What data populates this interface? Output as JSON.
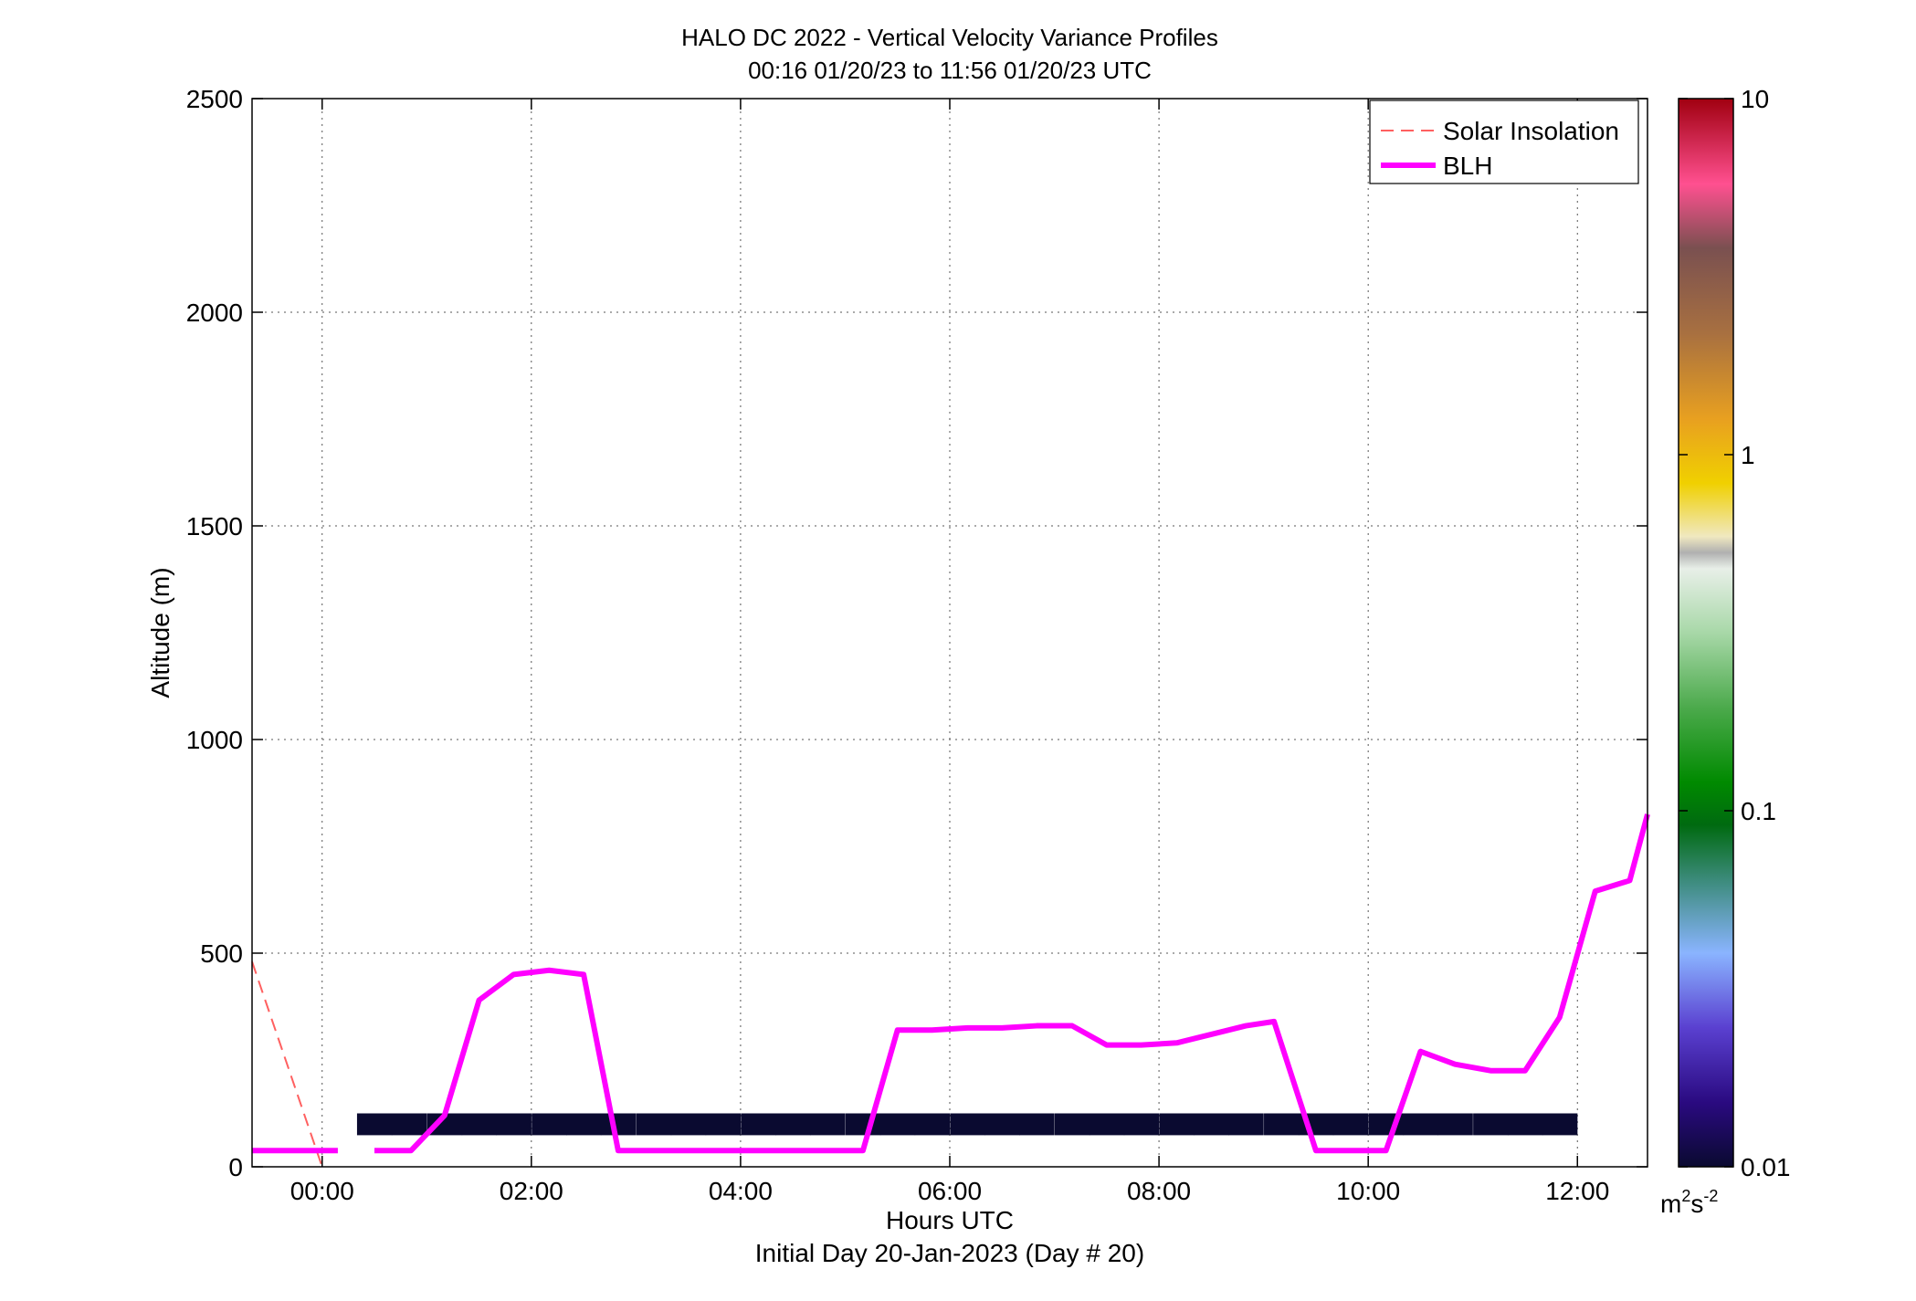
{
  "chart_data": {
    "type": "heatmap",
    "title": "HALO DC 2022 - Vertical Velocity Variance Profiles",
    "subtitle": "00:16 01/20/23 to 11:56 01/20/23  UTC",
    "xlabel": "Hours UTC",
    "xlabel2": "Initial Day 20-Jan-2023 (Day # 20)",
    "ylabel": "Altitude (m)",
    "xlim": [
      -0.67,
      12.67
    ],
    "ylim": [
      0,
      2500
    ],
    "x_ticks": [
      {
        "value": 0,
        "label": "00:00"
      },
      {
        "value": 2,
        "label": "02:00"
      },
      {
        "value": 4,
        "label": "04:00"
      },
      {
        "value": 6,
        "label": "06:00"
      },
      {
        "value": 8,
        "label": "08:00"
      },
      {
        "value": 10,
        "label": "10:00"
      },
      {
        "value": 12,
        "label": "12:00"
      }
    ],
    "y_ticks": [
      {
        "value": 0,
        "label": "0"
      },
      {
        "value": 500,
        "label": "500"
      },
      {
        "value": 1000,
        "label": "1000"
      },
      {
        "value": 1500,
        "label": "1500"
      },
      {
        "value": 2000,
        "label": "2000"
      },
      {
        "value": 2500,
        "label": "2500"
      }
    ],
    "grid": true,
    "legend": {
      "position": "top-right",
      "entries": [
        {
          "label": "Solar Insolation",
          "color": "#ff6060",
          "style": "dashed"
        },
        {
          "label": "BLH",
          "color": "#ff00ff",
          "style": "solid"
        }
      ]
    },
    "colorbar": {
      "scale": "log",
      "min": 0.01,
      "max": 10,
      "ticks": [
        {
          "value": 0.01,
          "label": "0.01"
        },
        {
          "value": 0.1,
          "label": "0.1"
        },
        {
          "value": 1,
          "label": "1"
        },
        {
          "value": 10,
          "label": "10"
        }
      ],
      "unit_base": "m",
      "unit_sup1": "2",
      "unit_mid": "s",
      "unit_sup2": "-2"
    },
    "blh": {
      "name": "BLH",
      "x": [
        -0.67,
        0.15,
        0.85,
        1.17,
        1.5,
        1.83,
        2.17,
        2.5,
        2.83,
        3.17,
        3.5,
        3.83,
        4.17,
        4.5,
        4.83,
        5.17,
        5.5,
        5.83,
        6.17,
        6.5,
        6.83,
        7.17,
        7.5,
        7.83,
        8.17,
        8.5,
        8.83,
        9.1,
        9.5,
        9.83,
        10.17,
        10.5,
        10.83,
        11.17,
        11.5,
        11.83,
        12.17,
        12.5,
        12.67
      ],
      "y": [
        38,
        38,
        38,
        120,
        390,
        450,
        460,
        450,
        38,
        38,
        38,
        38,
        38,
        38,
        38,
        38,
        320,
        320,
        325,
        325,
        330,
        330,
        285,
        285,
        290,
        310,
        330,
        340,
        38,
        38,
        38,
        270,
        240,
        225,
        225,
        350,
        645,
        670,
        825
      ],
      "gap_x": [
        0.15,
        0.5
      ]
    },
    "solar_insolation": {
      "name": "Solar Insolation",
      "x": [
        -0.67,
        0.0
      ],
      "y": [
        480,
        0
      ]
    },
    "heatmap_cells": [
      {
        "t": 0.5,
        "h": 100,
        "v": 0.01
      },
      {
        "t": 0.83,
        "h": 100,
        "v": 0.01
      },
      {
        "t": 1.17,
        "h": 100,
        "v": 0.01
      },
      {
        "t": 1.5,
        "h": 100,
        "v": 0.01
      },
      {
        "t": 1.83,
        "h": 100,
        "v": 0.01
      },
      {
        "t": 2.17,
        "h": 100,
        "v": 0.01
      },
      {
        "t": 2.5,
        "h": 100,
        "v": 0.01
      },
      {
        "t": 2.83,
        "h": 100,
        "v": 0.01
      },
      {
        "t": 3.17,
        "h": 100,
        "v": 0.01
      },
      {
        "t": 3.5,
        "h": 100,
        "v": 0.01
      },
      {
        "t": 3.83,
        "h": 100,
        "v": 0.01
      },
      {
        "t": 4.17,
        "h": 100,
        "v": 0.01
      },
      {
        "t": 4.5,
        "h": 100,
        "v": 0.01
      },
      {
        "t": 4.83,
        "h": 100,
        "v": 0.01
      },
      {
        "t": 5.17,
        "h": 100,
        "v": 0.01
      },
      {
        "t": 5.5,
        "h": 100,
        "v": 0.01
      },
      {
        "t": 5.83,
        "h": 100,
        "v": 0.01
      },
      {
        "t": 6.17,
        "h": 100,
        "v": 0.01
      },
      {
        "t": 6.5,
        "h": 100,
        "v": 0.01
      },
      {
        "t": 6.83,
        "h": 100,
        "v": 0.01
      },
      {
        "t": 7.17,
        "h": 100,
        "v": 0.01
      },
      {
        "t": 7.5,
        "h": 100,
        "v": 0.01
      },
      {
        "t": 7.83,
        "h": 100,
        "v": 0.01
      },
      {
        "t": 8.17,
        "h": 100,
        "v": 0.01
      },
      {
        "t": 8.5,
        "h": 100,
        "v": 0.01
      },
      {
        "t": 8.83,
        "h": 100,
        "v": 0.01
      },
      {
        "t": 9.17,
        "h": 100,
        "v": 0.01
      },
      {
        "t": 9.5,
        "h": 100,
        "v": 0.01
      },
      {
        "t": 9.83,
        "h": 100,
        "v": 0.01
      },
      {
        "t": 10.17,
        "h": 100,
        "v": 0.01
      },
      {
        "t": 10.5,
        "h": 100,
        "v": 0.01
      },
      {
        "t": 10.83,
        "h": 100,
        "v": 0.01
      },
      {
        "t": 11.17,
        "h": 100,
        "v": 0.01
      },
      {
        "t": 11.5,
        "h": 100,
        "v": 0.01
      },
      {
        "t": 11.83,
        "h": 100,
        "v": 0.01
      }
    ],
    "heatmap_cell_width_hours": 0.333,
    "heatmap_cell_height_m": 50
  }
}
